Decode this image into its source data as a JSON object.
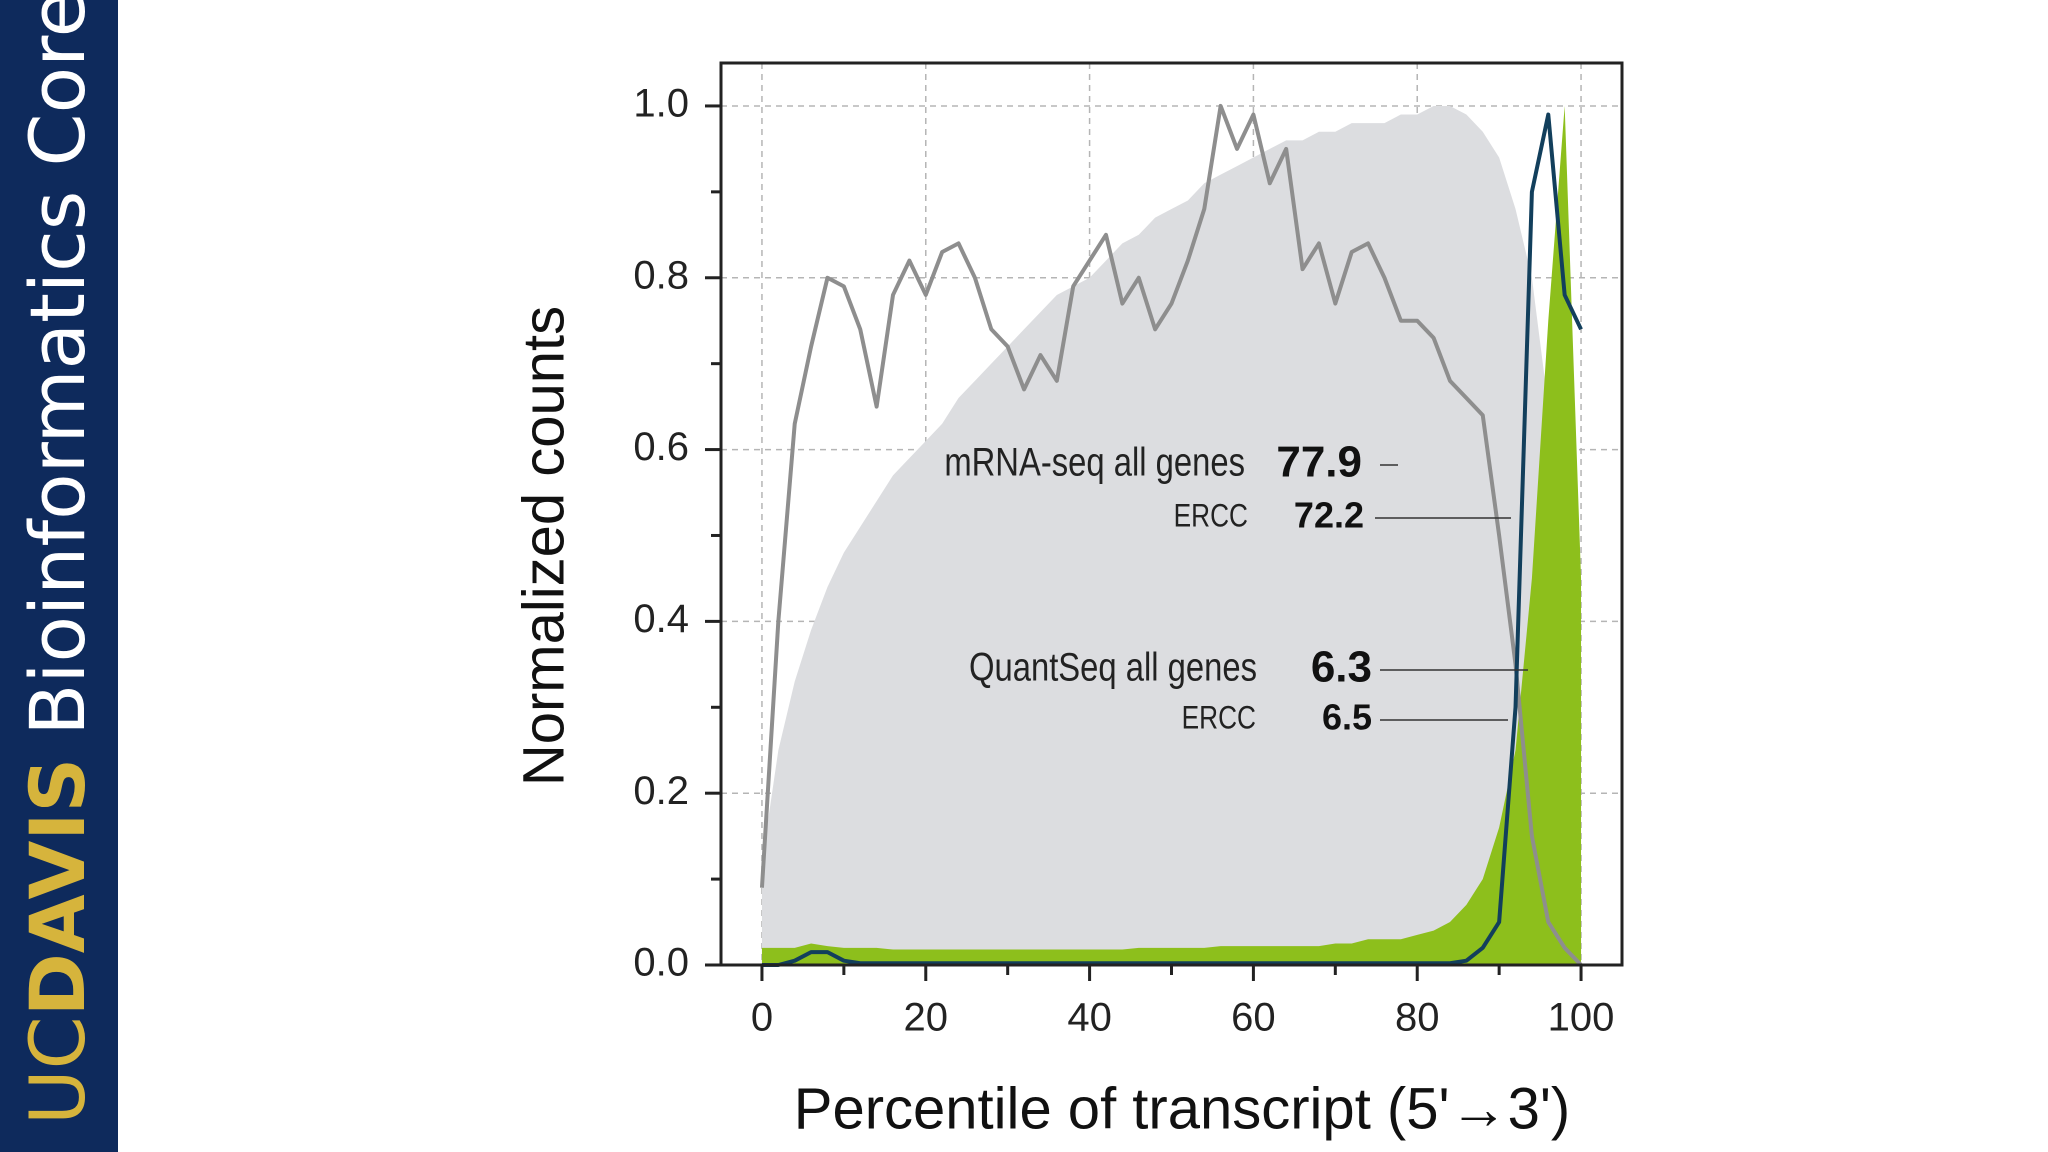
{
  "sidebar": {
    "logo_uc": "UC",
    "logo_davis": "DAVIS",
    "text": "Bioinformatics Core"
  },
  "chart_data": {
    "type": "area-line",
    "xlabel": "Percentile of transcript (5'→3')",
    "ylabel": "Normalized counts",
    "xlim": [
      -5,
      105
    ],
    "ylim": [
      0,
      1.05
    ],
    "xticks": [
      0,
      20,
      40,
      60,
      80,
      100
    ],
    "xminorticks": [
      10,
      30,
      50,
      70,
      90
    ],
    "yticks": [
      {
        "value": 0,
        "label": "0.0"
      },
      0.2,
      0.4,
      0.6,
      0.8,
      {
        "value": 1,
        "label": "1.0"
      }
    ],
    "yminorticks": [
      0.1,
      0.3,
      0.5,
      0.7,
      0.9
    ],
    "grid": true,
    "x": [
      0,
      2,
      4,
      6,
      8,
      10,
      12,
      14,
      16,
      18,
      20,
      22,
      24,
      26,
      28,
      30,
      32,
      34,
      36,
      38,
      40,
      42,
      44,
      46,
      48,
      50,
      52,
      54,
      56,
      58,
      60,
      62,
      64,
      66,
      68,
      70,
      72,
      74,
      76,
      78,
      80,
      82,
      84,
      86,
      88,
      90,
      92,
      94,
      96,
      98,
      100
    ],
    "series": [
      {
        "kind": "area",
        "color": "#dcdde0",
        "values": [
          0.12,
          0.25,
          0.33,
          0.39,
          0.44,
          0.48,
          0.51,
          0.54,
          0.57,
          0.59,
          0.61,
          0.63,
          0.66,
          0.68,
          0.7,
          0.72,
          0.74,
          0.76,
          0.78,
          0.79,
          0.8,
          0.82,
          0.84,
          0.85,
          0.87,
          0.88,
          0.89,
          0.91,
          0.92,
          0.93,
          0.94,
          0.95,
          0.96,
          0.96,
          0.97,
          0.97,
          0.98,
          0.98,
          0.98,
          0.99,
          0.99,
          1.0,
          1.0,
          0.99,
          0.97,
          0.94,
          0.88,
          0.8,
          0.65,
          0.4,
          0.05
        ]
      },
      {
        "kind": "area",
        "color": "#8dbf1c",
        "values": [
          0.02,
          0.02,
          0.02,
          0.025,
          0.022,
          0.02,
          0.02,
          0.02,
          0.018,
          0.018,
          0.018,
          0.018,
          0.018,
          0.018,
          0.018,
          0.018,
          0.018,
          0.018,
          0.018,
          0.018,
          0.018,
          0.018,
          0.018,
          0.02,
          0.02,
          0.02,
          0.02,
          0.02,
          0.022,
          0.022,
          0.022,
          0.022,
          0.022,
          0.022,
          0.022,
          0.025,
          0.025,
          0.03,
          0.03,
          0.03,
          0.035,
          0.04,
          0.05,
          0.07,
          0.1,
          0.16,
          0.25,
          0.45,
          0.75,
          1.0,
          0.45
        ]
      },
      {
        "kind": "line",
        "color": "#8e8e8e",
        "values": [
          0.09,
          0.4,
          0.63,
          0.72,
          0.8,
          0.79,
          0.74,
          0.65,
          0.78,
          0.82,
          0.78,
          0.83,
          0.84,
          0.8,
          0.74,
          0.72,
          0.67,
          0.71,
          0.68,
          0.79,
          0.82,
          0.85,
          0.77,
          0.8,
          0.74,
          0.77,
          0.82,
          0.88,
          1.0,
          0.95,
          0.99,
          0.91,
          0.95,
          0.81,
          0.84,
          0.77,
          0.83,
          0.84,
          0.8,
          0.75,
          0.75,
          0.73,
          0.68,
          0.66,
          0.64,
          0.5,
          0.35,
          0.15,
          0.05,
          0.02,
          0.0
        ]
      },
      {
        "kind": "line",
        "color": "#123f5c",
        "values": [
          0,
          0,
          0.005,
          0.015,
          0.015,
          0.005,
          0.002,
          0.002,
          0.002,
          0.002,
          0.002,
          0.002,
          0.002,
          0.002,
          0.002,
          0.002,
          0.002,
          0.002,
          0.002,
          0.002,
          0.002,
          0.002,
          0.002,
          0.002,
          0.002,
          0.002,
          0.002,
          0.002,
          0.002,
          0.002,
          0.002,
          0.002,
          0.002,
          0.002,
          0.002,
          0.002,
          0.002,
          0.002,
          0.002,
          0.002,
          0.002,
          0.002,
          0.002,
          0.005,
          0.02,
          0.05,
          0.3,
          0.9,
          0.99,
          0.78,
          0.74
        ]
      }
    ],
    "annotations": [
      {
        "label": "mRNA-seq all genes",
        "value": 77.9
      },
      {
        "label": "ERCC",
        "value": 72.2
      },
      {
        "label": "QuantSeq all genes",
        "value": 6.3
      },
      {
        "label": "ERCC",
        "value": 6.5
      }
    ]
  }
}
